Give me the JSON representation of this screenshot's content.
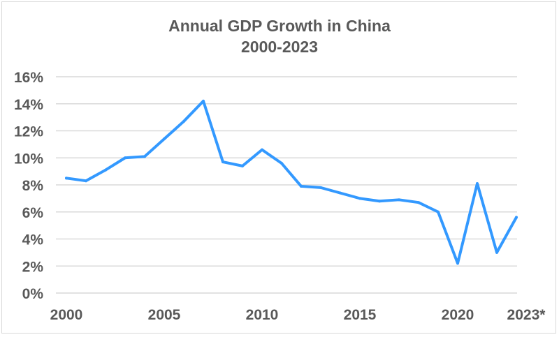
{
  "chart_data": {
    "type": "line",
    "title": "Annual GDP Growth in China",
    "subtitle": "2000-2023",
    "xlabel": "",
    "ylabel": "",
    "x": [
      2000,
      2001,
      2002,
      2003,
      2004,
      2005,
      2006,
      2007,
      2008,
      2009,
      2010,
      2011,
      2012,
      2013,
      2014,
      2015,
      2016,
      2017,
      2018,
      2019,
      2020,
      2021,
      2022,
      2023
    ],
    "values": [
      8.5,
      8.3,
      9.1,
      10.0,
      10.1,
      11.4,
      12.7,
      14.2,
      9.7,
      9.4,
      10.6,
      9.6,
      7.9,
      7.8,
      7.4,
      7.0,
      6.8,
      6.9,
      6.7,
      6.0,
      2.2,
      8.1,
      3.0,
      5.6
    ],
    "x_tick_labels": [
      {
        "x": 2000,
        "label": "2000"
      },
      {
        "x": 2005,
        "label": "2005"
      },
      {
        "x": 2010,
        "label": "2010"
      },
      {
        "x": 2015,
        "label": "2015"
      },
      {
        "x": 2020,
        "label": "2020"
      },
      {
        "x": 2023,
        "label": "2023*"
      }
    ],
    "y_ticks": [
      0,
      2,
      4,
      6,
      8,
      10,
      12,
      14,
      16
    ],
    "y_tick_suffix": "%",
    "ylim": [
      0,
      16
    ],
    "xlim": [
      2000,
      2023
    ],
    "grid": "horizontal",
    "line_color": "#3399ff",
    "grid_color": "#d9d9d9",
    "text_color": "#595959"
  }
}
